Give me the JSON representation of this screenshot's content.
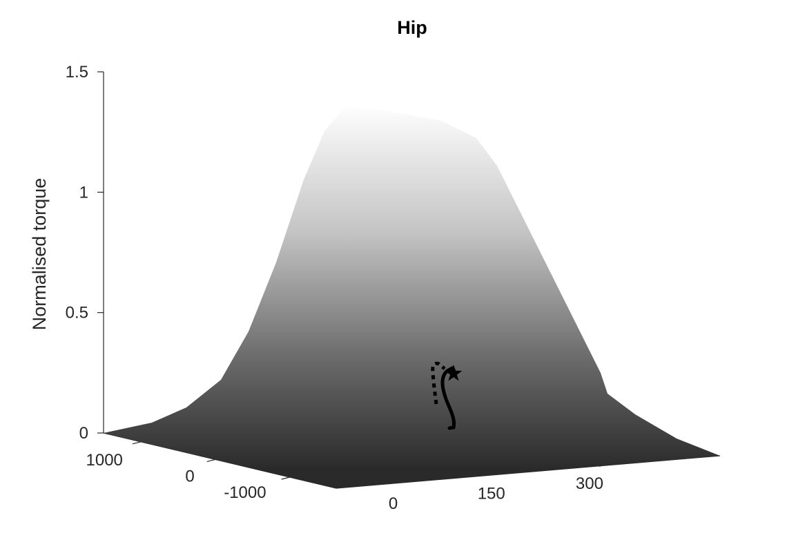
{
  "chart_data": {
    "type": "surface",
    "title": "Hip",
    "zlabel": "Normalised torque",
    "xlabel": "",
    "ylabel": "",
    "zlim": [
      0,
      1.5
    ],
    "z_ticks": [
      {
        "value": 0,
        "label": "0"
      },
      {
        "value": 0.5,
        "label": "0.5"
      },
      {
        "value": 1,
        "label": "1"
      },
      {
        "value": 1.5,
        "label": "1.5"
      }
    ],
    "left_axis_ticks": [
      {
        "value": 1000,
        "label": "1000"
      },
      {
        "value": 0,
        "label": "0"
      },
      {
        "value": -1000,
        "label": "-1000"
      }
    ],
    "right_axis_ticks": [
      {
        "value": 0,
        "label": "0"
      },
      {
        "value": 150,
        "label": "150"
      },
      {
        "value": 300,
        "label": "300"
      }
    ],
    "surface": {
      "colormap": "gray",
      "peak_value": 1.35,
      "profile": [
        {
          "u": 0,
          "z": 0.0
        },
        {
          "u": 0.25,
          "z": 0.12
        },
        {
          "u": 0.35,
          "z": 0.55
        },
        {
          "u": 0.45,
          "z": 1.25
        },
        {
          "u": 0.52,
          "z": 1.35
        },
        {
          "u": 0.62,
          "z": 1.3
        },
        {
          "u": 0.72,
          "z": 0.75
        },
        {
          "u": 0.82,
          "z": 0.3
        },
        {
          "u": 1.0,
          "z": 0.0
        }
      ]
    },
    "trajectories": [
      {
        "style": "solid",
        "marker": "star"
      },
      {
        "style": "dotted",
        "marker": "none"
      }
    ]
  }
}
